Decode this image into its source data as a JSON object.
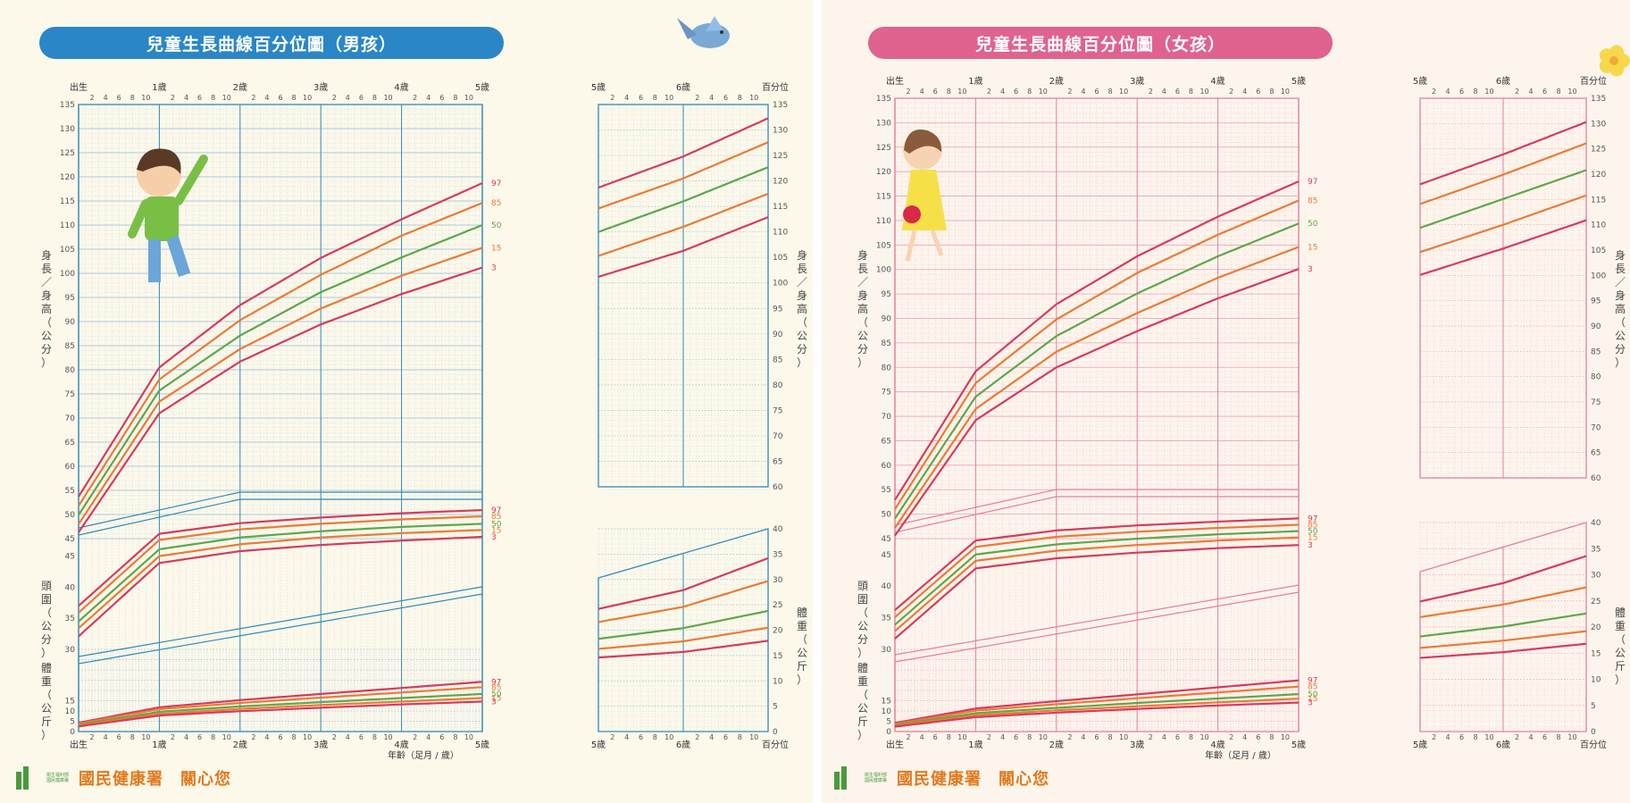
{
  "boy": {
    "title": "兒童生長曲線百分位圖（男孩）",
    "color": "#2f8ab8",
    "grid": "#c9e0ec",
    "gridDot": "#8fbfd6",
    "axis_top_left": [
      "出生",
      "1歲",
      "2歲",
      "3歲",
      "4歲",
      "5歲"
    ],
    "axis_top_right": [
      "5歲",
      "6歲",
      "百分位"
    ],
    "axis_bottom_left": [
      "出生",
      "1歲",
      "2歲",
      "3歲",
      "4歲",
      "5歲"
    ],
    "axis_bottom_right": [
      "5歲",
      "6歲",
      "百分位"
    ],
    "xlabel": "年齡（足月 / 歲）",
    "ylabel_height": "身長／身高（公分）",
    "ylabel_head": "頭圍（公分）",
    "ylabel_weight": "體重（公斤）"
  },
  "girl": {
    "title": "兒童生長曲線百分位圖（女孩）",
    "color": "#e87d9d",
    "grid": "#f6c9d6",
    "gridDot": "#ef9db5",
    "axis_top_left": [
      "出生",
      "1歲",
      "2歲",
      "3歲",
      "4歲",
      "5歲"
    ],
    "axis_top_right": [
      "5歲",
      "6歲",
      "百分位"
    ],
    "axis_bottom_left": [
      "出生",
      "1歲",
      "2歲",
      "3歲",
      "4歲",
      "5歲"
    ],
    "axis_bottom_right": [
      "5歲",
      "6歲",
      "百分位"
    ],
    "xlabel": "年齡（足月 / 歲）",
    "ylabel_height": "身長／身高（公分）",
    "ylabel_head": "頭圍（公分）",
    "ylabel_weight": "體重（公斤）"
  },
  "footer": {
    "text": "國民健康署　關心您",
    "logo_text": "衛生福利部國民健康署"
  },
  "month_ticks": [
    "2",
    "4",
    "6",
    "8",
    "10"
  ],
  "percentile_colors": {
    "97": "#d83a5c",
    "85": "#ec7a35",
    "50": "#5ca84a",
    "15": "#ec7a35",
    "3": "#d83a5c"
  },
  "chart_data": [
    {
      "type": "line",
      "title": "兒童生長曲線百分位圖（男孩）",
      "xlabel": "年齡（足月 / 歲）",
      "ylabel": "身長／身高（公分）",
      "x": [
        0,
        1,
        2,
        3,
        4,
        5,
        6,
        7
      ],
      "ylim": [
        45,
        135
      ],
      "series": [
        {
          "name": "97",
          "values": [
            53.7,
            80.5,
            93.4,
            103.2,
            111.2,
            118.7,
            124.8,
            132.3
          ]
        },
        {
          "name": "85",
          "values": [
            51.8,
            78.0,
            90.3,
            99.7,
            107.8,
            114.6,
            120.5,
            127.6
          ]
        },
        {
          "name": "50",
          "values": [
            49.9,
            75.7,
            87.1,
            96.1,
            103.3,
            110.0,
            116.0,
            122.7
          ]
        },
        {
          "name": "15",
          "values": [
            48.0,
            73.4,
            84.3,
            92.7,
            99.5,
            105.3,
            111.0,
            117.5
          ]
        },
        {
          "name": "3",
          "values": [
            46.3,
            71.0,
            81.7,
            89.4,
            95.7,
            101.2,
            106.3,
            112.9
          ]
        }
      ]
    },
    {
      "type": "line",
      "title": "兒童生長曲線百分位圖（男孩）",
      "ylabel": "頭圍（公分）",
      "x": [
        0,
        1,
        2,
        3,
        4,
        5
      ],
      "ylim": [
        30,
        55
      ],
      "series": [
        {
          "name": "97",
          "values": [
            37.0,
            48.6,
            50.3,
            51.2,
            51.9,
            52.4
          ]
        },
        {
          "name": "85",
          "values": [
            35.9,
            47.6,
            49.3,
            50.2,
            50.9,
            51.4
          ]
        },
        {
          "name": "50",
          "values": [
            34.5,
            46.1,
            48.0,
            49.0,
            49.7,
            50.2
          ]
        },
        {
          "name": "15",
          "values": [
            33.4,
            45.0,
            46.9,
            48.0,
            48.7,
            49.2
          ]
        },
        {
          "name": "3",
          "values": [
            32.1,
            43.9,
            45.8,
            46.8,
            47.5,
            48.1
          ]
        }
      ]
    },
    {
      "type": "line",
      "title": "兒童生長曲線百分位圖（男孩）",
      "xlabel": "年齡（足月 / 歲）",
      "ylabel": "體重（公斤）",
      "x": [
        0,
        1,
        2,
        3,
        4,
        5,
        6,
        7
      ],
      "ylim": [
        0,
        40
      ],
      "series": [
        {
          "name": "97",
          "values": [
            4.3,
            11.8,
            15.3,
            18.3,
            21.2,
            24.2,
            27.9,
            34.2
          ]
        },
        {
          "name": "85",
          "values": [
            3.9,
            10.9,
            13.9,
            16.5,
            19.0,
            21.6,
            24.6,
            29.7
          ]
        },
        {
          "name": "50",
          "values": [
            3.3,
            9.6,
            12.2,
            14.3,
            16.3,
            18.3,
            20.4,
            23.8
          ]
        },
        {
          "name": "15",
          "values": [
            2.9,
            8.6,
            11.0,
            12.9,
            14.6,
            16.3,
            17.8,
            20.5
          ]
        },
        {
          "name": "3",
          "values": [
            2.5,
            7.8,
            9.9,
            11.6,
            13.2,
            14.6,
            15.7,
            17.9
          ]
        }
      ]
    },
    {
      "type": "line",
      "title": "兒童生長曲線百分位圖（女孩）",
      "xlabel": "年齡（足月 / 歲）",
      "ylabel": "身長／身高（公分）",
      "x": [
        0,
        1,
        2,
        3,
        4,
        5,
        6,
        7
      ],
      "ylim": [
        45,
        135
      ],
      "series": [
        {
          "name": "97",
          "values": [
            52.9,
            79.2,
            92.9,
            102.7,
            110.8,
            118.0,
            123.9,
            130.3
          ]
        },
        {
          "name": "85",
          "values": [
            51.0,
            76.8,
            89.8,
            99.3,
            107.1,
            114.1,
            119.9,
            126.1
          ]
        },
        {
          "name": "50",
          "values": [
            49.1,
            74.0,
            86.4,
            95.1,
            102.7,
            109.4,
            115.1,
            120.8
          ]
        },
        {
          "name": "15",
          "values": [
            47.2,
            71.5,
            83.2,
            91.1,
            98.3,
            104.6,
            110.0,
            115.8
          ]
        },
        {
          "name": "3",
          "values": [
            45.6,
            69.2,
            80.0,
            87.4,
            94.1,
            100.1,
            105.3,
            110.9
          ]
        }
      ]
    },
    {
      "type": "line",
      "title": "兒童生長曲線百分位圖（女孩）",
      "ylabel": "頭圍（公分）",
      "x": [
        0,
        1,
        2,
        3,
        4,
        5
      ],
      "ylim": [
        30,
        55
      ],
      "series": [
        {
          "name": "97",
          "values": [
            36.2,
            47.2,
            48.8,
            49.6,
            50.2,
            50.7
          ]
        },
        {
          "name": "85",
          "values": [
            35.1,
            46.2,
            47.8,
            48.6,
            49.2,
            49.7
          ]
        },
        {
          "name": "50",
          "values": [
            33.9,
            45.0,
            46.6,
            47.5,
            48.2,
            48.7
          ]
        },
        {
          "name": "15",
          "values": [
            32.9,
            44.0,
            45.6,
            46.5,
            47.2,
            47.7
          ]
        },
        {
          "name": "3",
          "values": [
            31.7,
            42.8,
            44.4,
            45.3,
            46.0,
            46.5
          ]
        }
      ]
    },
    {
      "type": "line",
      "title": "兒童生長曲線百分位圖（女孩）",
      "xlabel": "年齡（足月 / 歲）",
      "ylabel": "體重（公斤）",
      "x": [
        0,
        1,
        2,
        3,
        4,
        5,
        6,
        7
      ],
      "ylim": [
        0,
        40
      ],
      "series": [
        {
          "name": "97",
          "values": [
            4.2,
            11.2,
            14.8,
            18.1,
            21.5,
            24.9,
            28.4,
            33.6
          ]
        },
        {
          "name": "85",
          "values": [
            3.7,
            10.2,
            13.3,
            16.2,
            19.0,
            21.9,
            24.3,
            27.6
          ]
        },
        {
          "name": "50",
          "values": [
            3.2,
            8.9,
            11.5,
            13.9,
            16.1,
            18.2,
            20.1,
            22.6
          ]
        },
        {
          "name": "15",
          "values": [
            2.8,
            7.9,
            10.3,
            12.3,
            14.2,
            16.0,
            17.4,
            19.2
          ]
        },
        {
          "name": "3",
          "values": [
            2.4,
            7.0,
            9.2,
            11.0,
            12.7,
            14.1,
            15.2,
            16.8
          ]
        }
      ]
    }
  ]
}
